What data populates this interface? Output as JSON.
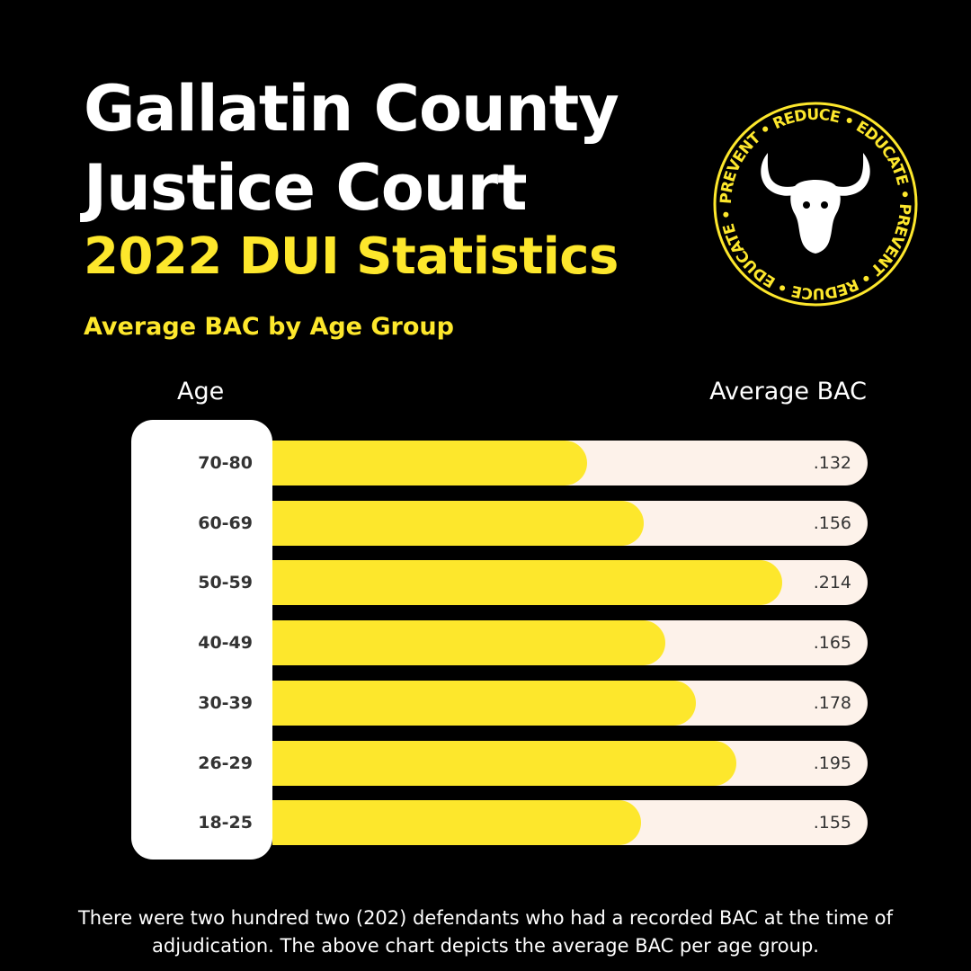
{
  "header": {
    "title_line1": "Gallatin County",
    "title_line2": "Justice Court",
    "title_line3": "2022 DUI Statistics",
    "subtitle": "Average BAC by Age Group"
  },
  "logo": {
    "ring_text": "PREVENT • REDUCE • EDUCATE • PREVENT • REDUCE • EDUCATE •",
    "icon": "bison-skull-icon"
  },
  "chart_data": {
    "type": "bar",
    "orientation": "horizontal",
    "column_headers": {
      "category": "Age",
      "value": "Average BAC"
    },
    "categories": [
      "70-80",
      "60-69",
      "50-59",
      "40-49",
      "30-39",
      "26-29",
      "18-25"
    ],
    "values": [
      0.132,
      0.156,
      0.214,
      0.165,
      0.178,
      0.195,
      0.155
    ],
    "value_labels": [
      ".132",
      ".156",
      ".214",
      ".165",
      ".178",
      ".195",
      ".155"
    ],
    "xlim": [
      0,
      0.25
    ],
    "colors": {
      "bar": "#fde72c",
      "track": "#fdf2ea",
      "background": "#000000"
    }
  },
  "footnote": "There were two hundred two (202) defendants who had a recorded BAC at the time of adjudication. The above chart depicts the average BAC per age group."
}
